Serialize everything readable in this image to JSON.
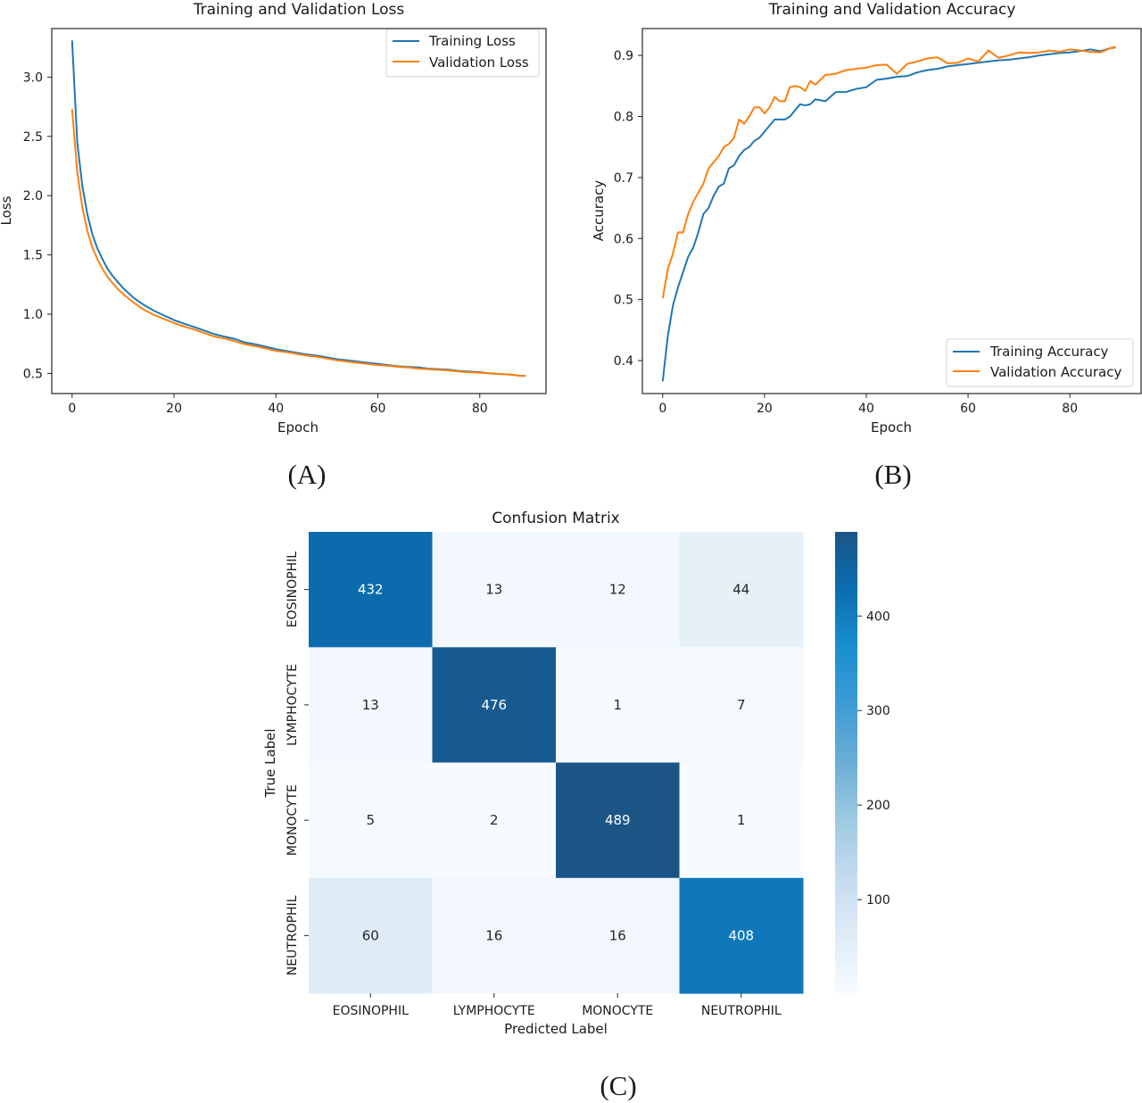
{
  "panels": {
    "a_label": "(A)",
    "b_label": "(B)",
    "c_label": "(C)"
  },
  "chart_data": [
    {
      "id": "loss",
      "type": "line",
      "title": "Training and Validation Loss",
      "xlabel": "Epoch",
      "ylabel": "Loss",
      "xlim": [
        -4,
        93
      ],
      "ylim": [
        0.33,
        3.41
      ],
      "xticks": [
        0,
        20,
        40,
        60,
        80
      ],
      "yticks": [
        0.5,
        1.0,
        1.5,
        2.0,
        2.5,
        3.0
      ],
      "ytick_labels": [
        "0.5",
        "1.0",
        "1.5",
        "2.0",
        "2.5",
        "3.0"
      ],
      "grid": false,
      "legend": "top-right",
      "x": [
        0,
        1,
        2,
        3,
        4,
        5,
        6,
        7,
        8,
        9,
        10,
        12,
        14,
        16,
        18,
        20,
        22,
        24,
        26,
        28,
        30,
        32,
        34,
        36,
        38,
        40,
        42,
        44,
        46,
        48,
        50,
        52,
        54,
        56,
        58,
        60,
        62,
        64,
        66,
        68,
        70,
        72,
        74,
        76,
        78,
        80,
        82,
        84,
        86,
        88,
        89
      ],
      "series": [
        {
          "name": "Training Loss",
          "color": "#1f77b4",
          "values": [
            3.31,
            2.45,
            2.08,
            1.84,
            1.67,
            1.55,
            1.46,
            1.38,
            1.32,
            1.27,
            1.22,
            1.14,
            1.08,
            1.03,
            0.99,
            0.95,
            0.92,
            0.89,
            0.86,
            0.83,
            0.81,
            0.79,
            0.76,
            0.745,
            0.725,
            0.705,
            0.69,
            0.675,
            0.66,
            0.65,
            0.635,
            0.62,
            0.61,
            0.6,
            0.59,
            0.58,
            0.57,
            0.56,
            0.555,
            0.55,
            0.54,
            0.535,
            0.53,
            0.52,
            0.515,
            0.51,
            0.5,
            0.495,
            0.49,
            0.48,
            0.48
          ]
        },
        {
          "name": "Validation Loss",
          "color": "#ff7f0e",
          "values": [
            2.73,
            2.2,
            1.9,
            1.7,
            1.56,
            1.46,
            1.38,
            1.31,
            1.26,
            1.21,
            1.17,
            1.1,
            1.04,
            0.995,
            0.96,
            0.925,
            0.895,
            0.87,
            0.84,
            0.81,
            0.795,
            0.77,
            0.745,
            0.73,
            0.71,
            0.69,
            0.68,
            0.665,
            0.65,
            0.64,
            0.625,
            0.61,
            0.6,
            0.59,
            0.58,
            0.57,
            0.565,
            0.555,
            0.55,
            0.54,
            0.535,
            0.53,
            0.525,
            0.515,
            0.51,
            0.505,
            0.5,
            0.495,
            0.49,
            0.48,
            0.48
          ]
        }
      ]
    },
    {
      "id": "accuracy",
      "type": "line",
      "title": "Training and Validation Accuracy",
      "xlabel": "Epoch",
      "ylabel": "Accuracy",
      "xlim": [
        -4,
        94
      ],
      "ylim": [
        0.346,
        0.944
      ],
      "xticks": [
        0,
        20,
        40,
        60,
        80
      ],
      "yticks": [
        0.4,
        0.5,
        0.6,
        0.7,
        0.8,
        0.9
      ],
      "ytick_labels": [
        "0.4",
        "0.5",
        "0.6",
        "0.7",
        "0.8",
        "0.9"
      ],
      "grid": false,
      "legend": "bottom-right",
      "x": [
        0,
        1,
        2,
        3,
        4,
        5,
        6,
        7,
        8,
        9,
        10,
        11,
        12,
        13,
        14,
        15,
        16,
        17,
        18,
        19,
        20,
        21,
        22,
        23,
        24,
        25,
        26,
        27,
        28,
        29,
        30,
        32,
        34,
        36,
        38,
        40,
        42,
        44,
        46,
        48,
        50,
        52,
        54,
        56,
        58,
        60,
        62,
        64,
        66,
        68,
        70,
        72,
        74,
        76,
        78,
        80,
        82,
        84,
        86,
        88,
        89
      ],
      "series": [
        {
          "name": "Training Accuracy",
          "color": "#1f77b4",
          "values": [
            0.366,
            0.44,
            0.49,
            0.52,
            0.545,
            0.57,
            0.585,
            0.61,
            0.64,
            0.65,
            0.67,
            0.685,
            0.69,
            0.715,
            0.72,
            0.735,
            0.745,
            0.75,
            0.76,
            0.765,
            0.775,
            0.785,
            0.795,
            0.795,
            0.795,
            0.8,
            0.81,
            0.82,
            0.818,
            0.82,
            0.828,
            0.825,
            0.84,
            0.84,
            0.845,
            0.848,
            0.86,
            0.862,
            0.865,
            0.866,
            0.872,
            0.876,
            0.878,
            0.882,
            0.884,
            0.886,
            0.888,
            0.89,
            0.892,
            0.893,
            0.895,
            0.897,
            0.9,
            0.902,
            0.904,
            0.905,
            0.907,
            0.91,
            0.907,
            0.912,
            0.913
          ]
        },
        {
          "name": "Validation Accuracy",
          "color": "#ff7f0e",
          "values": [
            0.502,
            0.55,
            0.575,
            0.61,
            0.61,
            0.64,
            0.66,
            0.675,
            0.69,
            0.715,
            0.725,
            0.735,
            0.75,
            0.755,
            0.765,
            0.795,
            0.788,
            0.8,
            0.815,
            0.815,
            0.805,
            0.815,
            0.832,
            0.825,
            0.825,
            0.848,
            0.85,
            0.848,
            0.842,
            0.858,
            0.852,
            0.868,
            0.87,
            0.876,
            0.878,
            0.88,
            0.884,
            0.885,
            0.87,
            0.886,
            0.89,
            0.895,
            0.897,
            0.887,
            0.888,
            0.895,
            0.89,
            0.908,
            0.896,
            0.9,
            0.905,
            0.904,
            0.905,
            0.908,
            0.906,
            0.91,
            0.908,
            0.906,
            0.905,
            0.912,
            0.914
          ]
        }
      ]
    },
    {
      "id": "confusion",
      "type": "heatmap",
      "title": "Confusion Matrix",
      "xlabel": "Predicted Label",
      "ylabel": "True Label",
      "row_labels": [
        "EOSINOPHIL",
        "LYMPHOCYTE",
        "MONOCYTE",
        "NEUTROPHIL"
      ],
      "col_labels": [
        "EOSINOPHIL",
        "LYMPHOCYTE",
        "MONOCYTE",
        "NEUTROPHIL"
      ],
      "values": [
        [
          432,
          13,
          12,
          44
        ],
        [
          13,
          476,
          1,
          7
        ],
        [
          5,
          2,
          489,
          1
        ],
        [
          60,
          16,
          16,
          408
        ]
      ],
      "colormap": "Blues",
      "colorbar": {
        "range": [
          1,
          489
        ],
        "ticks": [
          100,
          200,
          300,
          400
        ],
        "tick_labels": [
          "100",
          "200",
          "300",
          "400"
        ]
      }
    }
  ]
}
